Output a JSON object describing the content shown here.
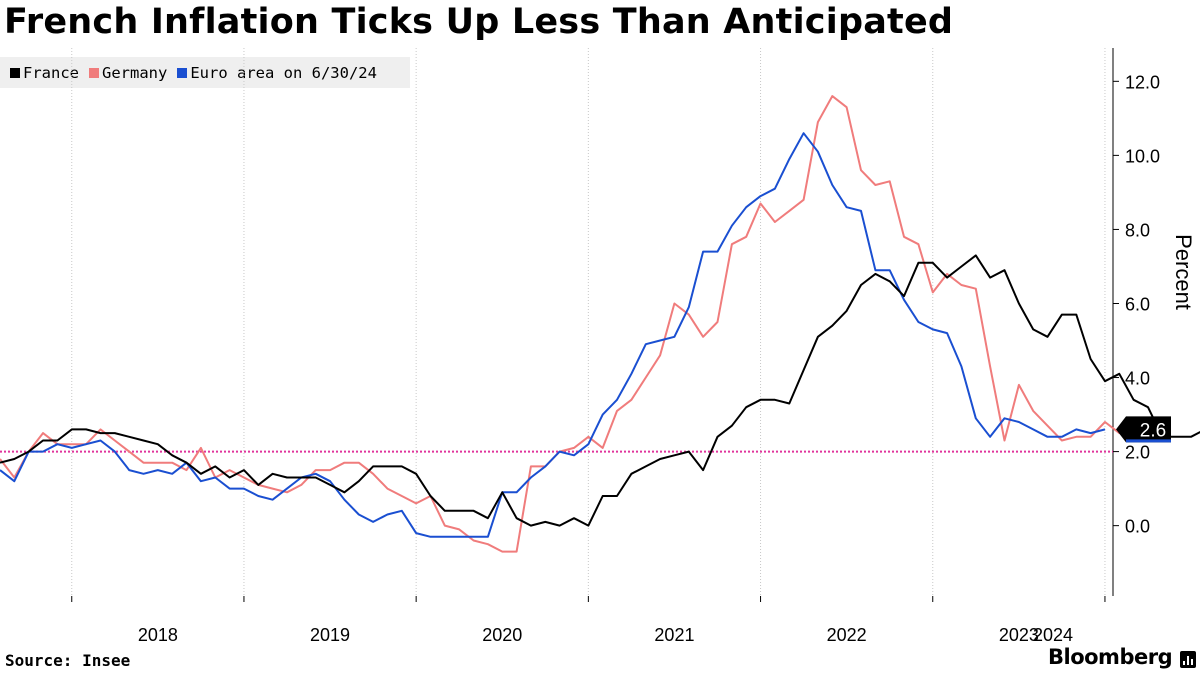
{
  "title": "French Inflation Ticks Up Less Than Anticipated",
  "source": "Source: Insee",
  "brand": "Bloomberg",
  "legend": [
    {
      "label": "France",
      "color": "#000000"
    },
    {
      "label": "Germany",
      "color": "#f07c7c"
    },
    {
      "label": "Euro area on 6/30/24",
      "color": "#1a4fd1"
    }
  ],
  "chart_data": {
    "type": "line",
    "title": "French Inflation Ticks Up Less Than Anticipated",
    "ylabel": "Percent",
    "xlabel": "",
    "ylim": [
      -1.9,
      12.9
    ],
    "yticks": [
      0.0,
      2.0,
      4.0,
      6.0,
      8.0,
      10.0,
      12.0
    ],
    "ytick_labels": [
      "0.0",
      "2.0",
      "4.0",
      "6.0",
      "8.0",
      "10.0",
      "12.0"
    ],
    "xticks": [
      "2018",
      "2019",
      "2020",
      "2021",
      "2022",
      "2023",
      "2024"
    ],
    "x_start": "2017-08",
    "grid": "vertical dotted at year boundaries",
    "reference_line": {
      "y": 2.0,
      "color": "#e0359c",
      "style": "dotted"
    },
    "last_value_label": {
      "text": "2.6",
      "series": "France"
    },
    "series": [
      {
        "name": "France",
        "color": "#000000",
        "values": [
          1.7,
          1.8,
          2.0,
          2.3,
          2.3,
          2.6,
          2.6,
          2.5,
          2.5,
          2.4,
          2.3,
          2.2,
          1.9,
          1.7,
          1.4,
          1.6,
          1.3,
          1.5,
          1.1,
          1.4,
          1.3,
          1.3,
          1.3,
          1.1,
          0.9,
          1.2,
          1.6,
          1.6,
          1.6,
          1.4,
          0.8,
          0.4,
          0.4,
          0.4,
          0.2,
          0.9,
          0.2,
          0.0,
          0.1,
          0.0,
          0.2,
          0.0,
          0.8,
          0.8,
          1.4,
          1.6,
          1.8,
          1.9,
          2.0,
          1.5,
          2.4,
          2.7,
          3.2,
          3.4,
          3.4,
          3.3,
          4.2,
          5.1,
          5.4,
          5.8,
          6.5,
          6.8,
          6.6,
          6.2,
          7.1,
          7.1,
          6.7,
          7.0,
          7.3,
          6.7,
          6.9,
          6.0,
          5.3,
          5.1,
          5.7,
          5.7,
          4.5,
          3.9,
          4.1,
          3.4,
          3.2,
          2.4,
          2.4,
          2.4,
          2.6,
          2.5,
          2.6
        ]
      },
      {
        "name": "Germany",
        "color": "#f07c7c",
        "values": [
          1.8,
          1.3,
          2.0,
          2.5,
          2.2,
          2.2,
          2.2,
          2.6,
          2.3,
          2.0,
          1.7,
          1.7,
          1.7,
          1.5,
          2.1,
          1.3,
          1.5,
          1.3,
          1.1,
          1.0,
          0.9,
          1.1,
          1.5,
          1.5,
          1.7,
          1.7,
          1.4,
          1.0,
          0.8,
          0.6,
          0.8,
          0.0,
          -0.1,
          -0.4,
          -0.5,
          -0.7,
          -0.7,
          1.6,
          1.6,
          2.0,
          2.1,
          2.4,
          2.1,
          3.1,
          3.4,
          4.0,
          4.6,
          6.0,
          5.7,
          5.1,
          5.5,
          7.6,
          7.8,
          8.7,
          8.2,
          8.5,
          8.8,
          10.9,
          11.6,
          11.3,
          9.6,
          9.2,
          9.3,
          7.8,
          7.6,
          6.3,
          6.8,
          6.5,
          6.4,
          4.3,
          2.3,
          3.8,
          3.1,
          2.7,
          2.3,
          2.4,
          2.4,
          2.8,
          2.5,
          2.6
        ]
      },
      {
        "name": "Euro area on 6/30/24",
        "color": "#1a4fd1",
        "values": [
          1.5,
          1.2,
          2.0,
          2.0,
          2.2,
          2.1,
          2.2,
          2.3,
          2.0,
          1.5,
          1.4,
          1.5,
          1.4,
          1.7,
          1.2,
          1.3,
          1.0,
          1.0,
          0.8,
          0.7,
          1.0,
          1.3,
          1.4,
          1.2,
          0.7,
          0.3,
          0.1,
          0.3,
          0.4,
          -0.2,
          -0.3,
          -0.3,
          -0.3,
          -0.3,
          -0.3,
          0.9,
          0.9,
          1.3,
          1.6,
          2.0,
          1.9,
          2.2,
          3.0,
          3.4,
          4.1,
          4.9,
          5.0,
          5.1,
          5.9,
          7.4,
          7.4,
          8.1,
          8.6,
          8.9,
          9.1,
          9.9,
          10.6,
          10.1,
          9.2,
          8.6,
          8.5,
          6.9,
          6.9,
          6.1,
          5.5,
          5.3,
          5.2,
          4.3,
          2.9,
          2.4,
          2.9,
          2.8,
          2.6,
          2.4,
          2.4,
          2.6,
          2.5,
          2.6
        ]
      }
    ]
  }
}
